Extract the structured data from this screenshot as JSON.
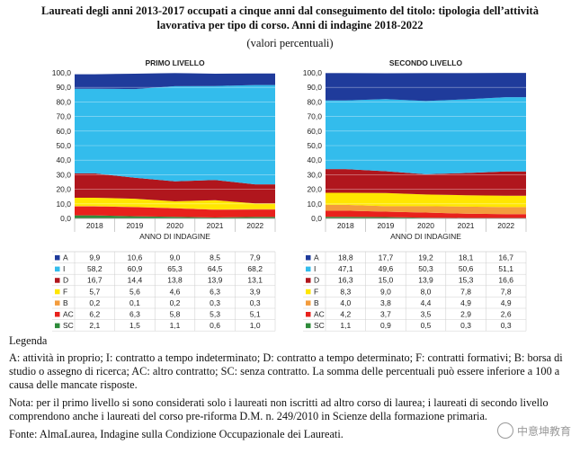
{
  "header": {
    "title_line1": "Laureati degli anni 2013-2017 occupati a cinque anni dal conseguimento del titolo: tipologia dell’attività",
    "title_line2": "lavorativa per tipo di corso. Anni di indagine 2018-2022",
    "subtitle": "(valori percentuali)"
  },
  "chart_data": [
    {
      "type": "area",
      "stacked": true,
      "title": "PRIMO LIVELLO",
      "xlabel": "ANNO DI INDAGINE",
      "ylabel": "",
      "ylim": [
        0,
        100
      ],
      "yticks": [
        "0,0",
        "10,0",
        "20,0",
        "30,0",
        "40,0",
        "50,0",
        "60,0",
        "70,0",
        "80,0",
        "90,0",
        "100,0"
      ],
      "categories": [
        "2018",
        "2019",
        "2020",
        "2021",
        "2022"
      ],
      "series": [
        {
          "name": "SC",
          "color": "#2e8b3a",
          "values": [
            2.1,
            1.5,
            1.1,
            0.6,
            1.0
          ],
          "labels": [
            "2,1",
            "1,5",
            "1,1",
            "0,6",
            "1,0"
          ]
        },
        {
          "name": "AC",
          "color": "#e8211c",
          "values": [
            6.2,
            6.3,
            5.8,
            5.3,
            5.1
          ],
          "labels": [
            "6,2",
            "6,3",
            "5,8",
            "5,3",
            "5,1"
          ]
        },
        {
          "name": "B",
          "color": "#f39c3d",
          "values": [
            0.2,
            0.1,
            0.2,
            0.3,
            0.3
          ],
          "labels": [
            "0,2",
            "0,1",
            "0,2",
            "0,3",
            "0,3"
          ]
        },
        {
          "name": "F",
          "color": "#ffe600",
          "values": [
            5.7,
            5.6,
            4.6,
            6.3,
            3.9
          ],
          "labels": [
            "5,7",
            "5,6",
            "4,6",
            "6,3",
            "3,9"
          ]
        },
        {
          "name": "D",
          "color": "#b0161d",
          "values": [
            16.7,
            14.4,
            13.8,
            13.9,
            13.1
          ],
          "labels": [
            "16,7",
            "14,4",
            "13,8",
            "13,9",
            "13,1"
          ]
        },
        {
          "name": "I",
          "color": "#33bcec",
          "values": [
            58.2,
            60.9,
            65.3,
            64.5,
            68.2
          ],
          "labels": [
            "58,2",
            "60,9",
            "65,3",
            "64,5",
            "68,2"
          ]
        },
        {
          "name": "A",
          "color": "#1f3b9b",
          "values": [
            9.9,
            10.6,
            9.0,
            8.5,
            7.9
          ],
          "labels": [
            "9,9",
            "10,6",
            "9,0",
            "8,5",
            "7,9"
          ]
        }
      ]
    },
    {
      "type": "area",
      "stacked": true,
      "title": "SECONDO LIVELLO",
      "xlabel": "ANNO DI INDAGINE",
      "ylabel": "",
      "ylim": [
        0,
        100
      ],
      "yticks": [
        "0,0",
        "10,0",
        "20,0",
        "30,0",
        "40,0",
        "50,0",
        "60,0",
        "70,0",
        "80,0",
        "90,0",
        "100,0"
      ],
      "categories": [
        "2018",
        "2019",
        "2020",
        "2021",
        "2022"
      ],
      "series": [
        {
          "name": "SC",
          "color": "#2e8b3a",
          "values": [
            1.1,
            0.9,
            0.5,
            0.3,
            0.3
          ],
          "labels": [
            "1,1",
            "0,9",
            "0,5",
            "0,3",
            "0,3"
          ]
        },
        {
          "name": "AC",
          "color": "#e8211c",
          "values": [
            4.2,
            3.7,
            3.5,
            2.9,
            2.6
          ],
          "labels": [
            "4,2",
            "3,7",
            "3,5",
            "2,9",
            "2,6"
          ]
        },
        {
          "name": "B",
          "color": "#f39c3d",
          "values": [
            4.0,
            3.8,
            4.4,
            4.9,
            4.9
          ],
          "labels": [
            "4,0",
            "3,8",
            "4,4",
            "4,9",
            "4,9"
          ]
        },
        {
          "name": "F",
          "color": "#ffe600",
          "values": [
            8.3,
            9.0,
            8.0,
            7.8,
            7.8
          ],
          "labels": [
            "8,3",
            "9,0",
            "8,0",
            "7,8",
            "7,8"
          ]
        },
        {
          "name": "D",
          "color": "#b0161d",
          "values": [
            16.3,
            15.0,
            13.9,
            15.3,
            16.6
          ],
          "labels": [
            "16,3",
            "15,0",
            "13,9",
            "15,3",
            "16,6"
          ]
        },
        {
          "name": "I",
          "color": "#33bcec",
          "values": [
            47.1,
            49.6,
            50.3,
            50.6,
            51.1
          ],
          "labels": [
            "47,1",
            "49,6",
            "50,3",
            "50,6",
            "51,1"
          ]
        },
        {
          "name": "A",
          "color": "#1f3b9b",
          "values": [
            18.8,
            17.7,
            19.2,
            18.1,
            16.7
          ],
          "labels": [
            "18,8",
            "17,7",
            "19,2",
            "18,1",
            "16,7"
          ]
        }
      ]
    }
  ],
  "table_row_order": [
    "A",
    "I",
    "D",
    "F",
    "B",
    "AC",
    "SC"
  ],
  "legend": {
    "heading": "Legenda",
    "text": "A: attività in proprio; I: contratto a tempo indeterminato; D: contratto a tempo determinato; F: contratti formativi; B: borsa di studio o assegno di ricerca; AC: altro contratto; SC: senza contratto. La somma delle percentuali può essere inferiore a 100 a causa delle mancate risposte.",
    "note": "Nota: per il primo livello si sono considerati solo i laureati non iscritti ad altro corso di laurea; i laureati di secondo livello comprendono anche i laureati del corso pre-riforma D.M. n. 249/2010 in Scienze della formazione primaria.",
    "source": "Fonte: AlmaLaurea, Indagine sulla Condizione Occupazionale dei Laureati."
  },
  "watermark": {
    "text": "中意坤教育",
    "icon": "wechat-icon"
  }
}
